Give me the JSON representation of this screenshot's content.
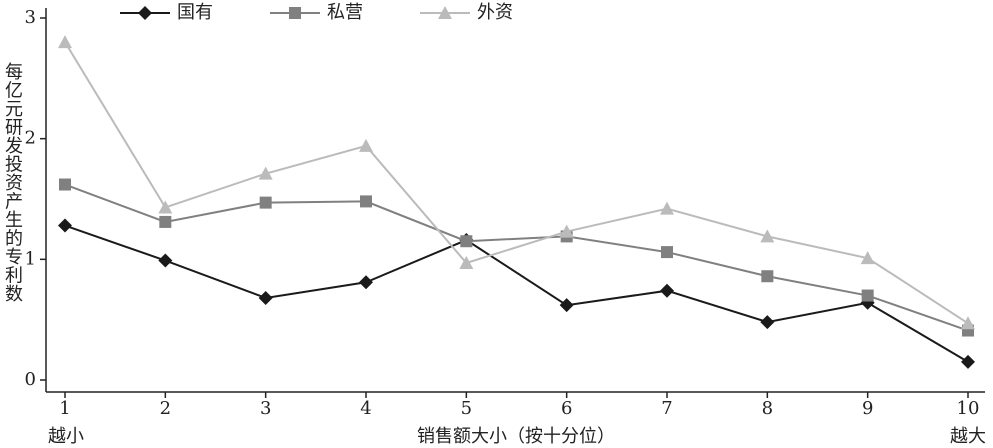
{
  "chart_data": {
    "type": "line",
    "y_label": "每亿元研发投资产生的专利数",
    "x_label": "销售额大小（按十分位）",
    "x_low_label": "越小",
    "x_high_label": "越大",
    "categories": [
      "1",
      "2",
      "3",
      "4",
      "5",
      "6",
      "7",
      "8",
      "9",
      "10"
    ],
    "series": [
      {
        "name": "国有",
        "color": "#1a1a1a",
        "marker": "diamond",
        "values": [
          1.28,
          0.99,
          0.68,
          0.81,
          1.16,
          0.62,
          0.74,
          0.48,
          0.64,
          0.15
        ]
      },
      {
        "name": "私营",
        "color": "#808080",
        "marker": "square",
        "values": [
          1.62,
          1.31,
          1.47,
          1.48,
          1.15,
          1.19,
          1.06,
          0.86,
          0.7,
          0.41
        ]
      },
      {
        "name": "外资",
        "color": "#bbbbbb",
        "marker": "triangle",
        "values": [
          2.8,
          1.43,
          1.71,
          1.94,
          0.97,
          1.23,
          1.42,
          1.19,
          1.01,
          0.47
        ]
      }
    ],
    "ylim": [
      0,
      3
    ],
    "yticks": [
      0,
      1,
      2,
      3
    ],
    "grid": false,
    "legend": "top"
  }
}
